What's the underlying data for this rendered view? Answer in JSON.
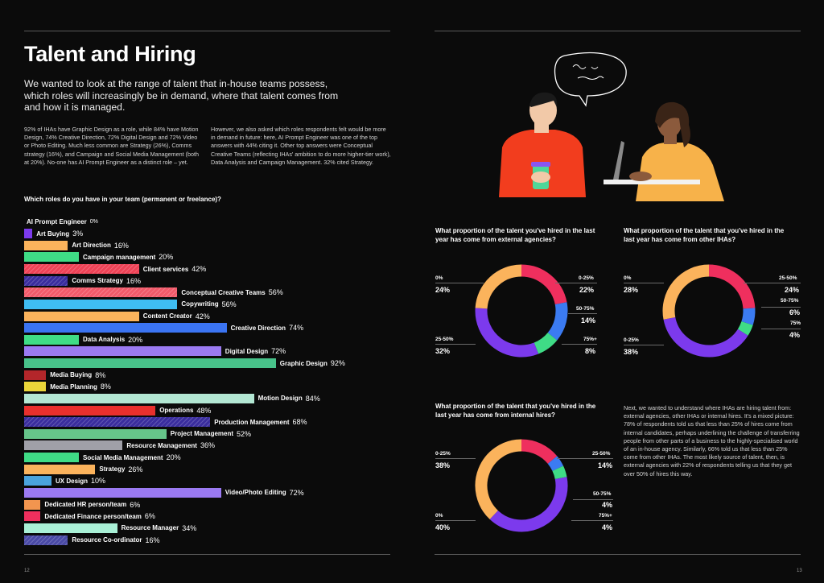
{
  "left_page": {
    "title": "Talent and Hiring",
    "lead": "We wanted to look at the range of talent that in-house teams possess, which roles will increasingly be in demand, where that talent comes from and how it is managed.",
    "col1": "92% of IHAs have Graphic Design as a role, while 84% have Motion Design, 74% Creative Direction, 72% Digital Design and 72% Video or Photo Editing. Much less common are Strategy (26%), Comms strategy (16%), and Campaign and Social Media Management (both at 20%). No-one has AI Prompt Engineer as a distinct role – yet.",
    "col2": "However, we also asked which roles respondents felt would be more in demand in future: here, AI Prompt Engineer was one of the top answers with 44% citing it. Other top answers were Conceptual Creative Teams (reflecting IHAs' ambition to do more higher-tier work), Data Analysis and Campaign Management. 32% cited Strategy.",
    "chart_question": "Which roles do you have in your team (permanent or freelance)?",
    "page_number": "12"
  },
  "right_page": {
    "closing_text": "Next, we wanted to understand where IHAs are hiring talent from: external agencies, other IHAs or internal hires. It's a mixed picture: 78% of respondents told us that less than 25% of hires come from internal candidates, perhaps underlining the challenge of transferring people from other parts of a business to the highly-specialised world of an in-house agency. Similarly, 66% told us that less than 25% come from other IHAs. The most likely source of talent, then, is external agencies with 22% of respondents telling us that they get over 50% of hires this way.",
    "page_number": "13"
  },
  "chart_data": [
    {
      "type": "bar",
      "title": "Which roles do you have in your team (permanent or freelance)?",
      "categories": [
        "AI Prompt Engineer",
        "Art Buying",
        "Art Direction",
        "Campaign management",
        "Client services",
        "Comms Strategy",
        "Conceptual Creative Teams",
        "Copywriting",
        "Content Creator",
        "Creative Direction",
        "Data Analysis",
        "Digital Design",
        "Graphic Design",
        "Media Buying",
        "Media Planning",
        "Motion Design",
        "Operations",
        "Production Management",
        "Project Management",
        "Resource Management",
        "Social Media Management",
        "Strategy",
        "UX Design",
        "Video/Photo Editing",
        "Dedicated HR person/team",
        "Dedicated Finance person/team",
        "Resource Manager",
        "Resource Co-ordinator"
      ],
      "values": [
        0,
        3,
        16,
        20,
        42,
        16,
        56,
        56,
        42,
        74,
        20,
        72,
        92,
        8,
        8,
        84,
        48,
        68,
        52,
        36,
        20,
        26,
        10,
        72,
        6,
        6,
        34,
        16
      ],
      "labels": [
        "0%",
        "3%",
        "16%",
        "20%",
        "42%",
        "16%",
        "56%",
        "56%",
        "42%",
        "74%",
        "20%",
        "72%",
        "92%",
        "8%",
        "8%",
        "84%",
        "48%",
        "68%",
        "52%",
        "36%",
        "20%",
        "26%",
        "10%",
        "72%",
        "6%",
        "6%",
        "34%",
        "16%"
      ],
      "colors": [
        "#7c3aed",
        "#7c3aed",
        "#fbb35c",
        "#3fdc86",
        "#ef4256",
        "#3a2d9e",
        "#f25a6a",
        "#3fbdf2",
        "#fbb35c",
        "#3b74f2",
        "#3fdc86",
        "#9b7af2",
        "#48c28a",
        "#b3262a",
        "#ead63a",
        "#b3e7d3",
        "#e9302d",
        "#3a2d9e",
        "#66c58a",
        "#a0a0a8",
        "#3fdc86",
        "#fbb35c",
        "#4aa3dd",
        "#9b7af2",
        "#f2954f",
        "#ef2f5e",
        "#a9f0d6",
        "#4a4aa6"
      ],
      "striped": [
        false,
        false,
        false,
        false,
        true,
        true,
        true,
        false,
        false,
        false,
        false,
        false,
        false,
        false,
        false,
        false,
        false,
        true,
        false,
        false,
        false,
        false,
        false,
        false,
        false,
        false,
        false,
        true
      ],
      "xlim": [
        0,
        100
      ]
    },
    {
      "type": "pie",
      "title": "What proportion of the talent you've hired in the last year has come from external agencies?",
      "categories": [
        "0-25%",
        "50-75%",
        "75%+",
        "25-50%",
        "0%"
      ],
      "values": [
        22,
        14,
        8,
        32,
        24
      ],
      "labels": [
        "22%",
        "14%",
        "8%",
        "32%",
        "24%"
      ],
      "colors": [
        "#ef2f5e",
        "#3b7bf2",
        "#3fdc86",
        "#7c3aed",
        "#fbb35c"
      ]
    },
    {
      "type": "pie",
      "title": "What proportion of the talent that you've hired in the last year has come from other IHAs?",
      "categories": [
        "25-50%",
        "50-75%",
        "75%",
        "0-25%",
        "0%"
      ],
      "values": [
        24,
        6,
        4,
        38,
        28
      ],
      "labels": [
        "24%",
        "6%",
        "4%",
        "38%",
        "28%"
      ],
      "colors": [
        "#ef2f5e",
        "#3b7bf2",
        "#3fdc86",
        "#7c3aed",
        "#fbb35c"
      ]
    },
    {
      "type": "pie",
      "title": "What proportion of the talent that you've hired in the last year has come from internal hires?",
      "categories": [
        "25-50%",
        "50-75%",
        "75%+",
        "0%",
        "0-25%"
      ],
      "values": [
        14,
        4,
        4,
        40,
        38
      ],
      "labels": [
        "14%",
        "4%",
        "4%",
        "40%",
        "38%"
      ],
      "colors": [
        "#ef2f5e",
        "#3b7bf2",
        "#3fdc86",
        "#7c3aed",
        "#fbb35c"
      ]
    }
  ]
}
